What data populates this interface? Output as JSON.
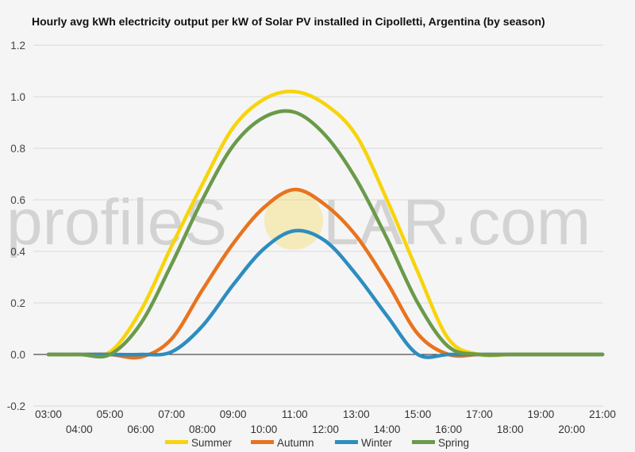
{
  "chart_data": {
    "type": "line",
    "title": "Hourly avg kWh electricity output per kW of Solar PV installed in Cipolletti, Argentina (by season)",
    "xlabel": "",
    "ylabel": "",
    "x": [
      "03:00",
      "04:00",
      "05:00",
      "06:00",
      "07:00",
      "08:00",
      "09:00",
      "10:00",
      "11:00",
      "12:00",
      "13:00",
      "14:00",
      "15:00",
      "16:00",
      "17:00",
      "18:00",
      "19:00",
      "20:00",
      "21:00"
    ],
    "ylim": [
      -0.2,
      1.2
    ],
    "yticks": [
      "-0.2",
      "0.0",
      "0.2",
      "0.4",
      "0.6",
      "0.8",
      "1.0",
      "1.2"
    ],
    "grid": true,
    "legend_position": "bottom",
    "series": [
      {
        "name": "Summer",
        "color": "#f7d40b",
        "values": [
          0,
          0,
          0.01,
          0.17,
          0.42,
          0.66,
          0.88,
          0.99,
          1.02,
          0.97,
          0.85,
          0.6,
          0.32,
          0.06,
          0,
          0,
          0,
          0,
          0
        ]
      },
      {
        "name": "Autumn",
        "color": "#e9731e",
        "values": [
          0,
          0,
          0,
          -0.01,
          0.06,
          0.25,
          0.43,
          0.57,
          0.64,
          0.58,
          0.46,
          0.28,
          0.08,
          0,
          0,
          0,
          0,
          0,
          0
        ]
      },
      {
        "name": "Winter",
        "color": "#2d8dc0",
        "values": [
          0,
          0,
          0,
          0,
          0.01,
          0.11,
          0.27,
          0.41,
          0.48,
          0.44,
          0.31,
          0.15,
          0,
          0,
          0,
          0,
          0,
          0,
          0
        ]
      },
      {
        "name": "Spring",
        "color": "#6a9a4a",
        "values": [
          0,
          0,
          0,
          0.12,
          0.35,
          0.6,
          0.81,
          0.92,
          0.94,
          0.85,
          0.68,
          0.45,
          0.2,
          0.03,
          0,
          0,
          0,
          0,
          0
        ]
      }
    ]
  },
  "watermark": {
    "text_before": "profileS",
    "text_after": "LAR.com",
    "sun_color": "#f7d84a"
  }
}
